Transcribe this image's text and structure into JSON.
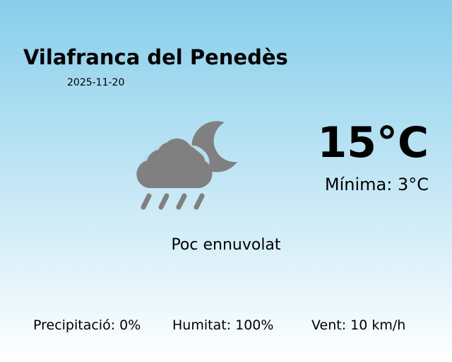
{
  "location": "Vilafranca del Penedès",
  "date": "2025-11-20",
  "weather_icon": "cloud-rain-moon-icon",
  "icon_color": "#808080",
  "temperature": "15°C",
  "minimum": "Mínima: 3°C",
  "description": "Poc ennuvolat",
  "stats": {
    "precipitation": "Precipitació: 0%",
    "humidity": "Humitat: 100%",
    "wind": "Vent: 10 km/h"
  },
  "colors": {
    "background_top": "#87ceeb",
    "background_bottom": "#ffffff"
  }
}
